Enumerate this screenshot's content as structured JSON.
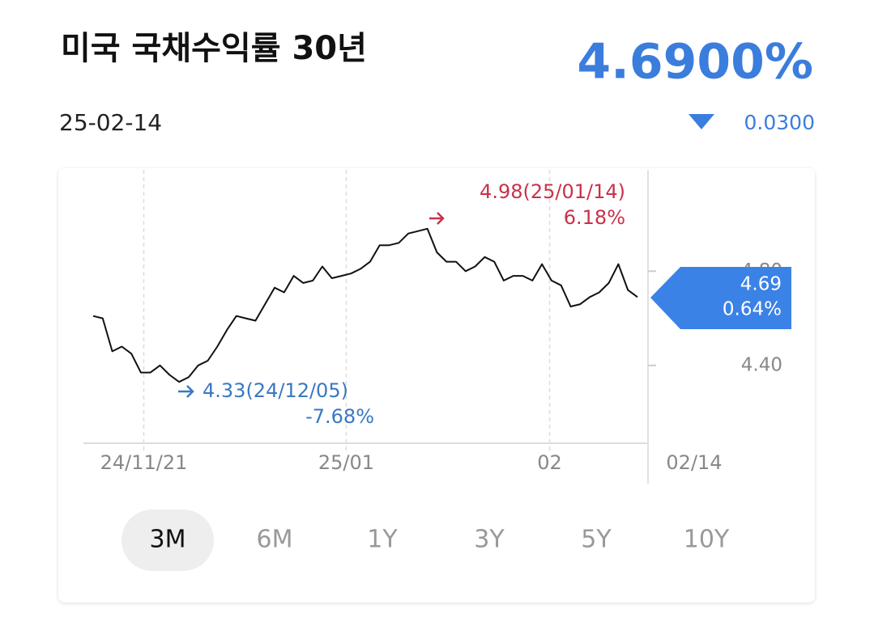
{
  "header": {
    "title": "미국 국채수익률 30년",
    "date": "25-02-14",
    "price": "4.6900%",
    "change": "0.0300"
  },
  "chart_data": {
    "type": "line",
    "color": "#111111",
    "values": [
      4.61,
      4.6,
      4.46,
      4.48,
      4.45,
      4.37,
      4.37,
      4.4,
      4.36,
      4.33,
      4.35,
      4.4,
      4.42,
      4.48,
      4.55,
      4.61,
      4.6,
      4.59,
      4.66,
      4.73,
      4.71,
      4.78,
      4.75,
      4.76,
      4.82,
      4.77,
      4.78,
      4.79,
      4.81,
      4.84,
      4.91,
      4.91,
      4.92,
      4.96,
      4.97,
      4.98,
      4.88,
      4.84,
      4.84,
      4.8,
      4.82,
      4.86,
      4.84,
      4.76,
      4.78,
      4.78,
      4.76,
      4.83,
      4.76,
      4.74,
      4.65,
      4.66,
      4.69,
      4.71,
      4.75,
      4.83,
      4.72,
      4.69
    ],
    "ylim": [
      4.07,
      5.23
    ],
    "yticks": [
      {
        "value": 4.4,
        "label": "4.40"
      },
      {
        "value": 4.8,
        "label": "4.80"
      }
    ],
    "xticks": [
      {
        "value": 5.3,
        "label": "24/11/21"
      },
      {
        "value": 26.5,
        "label": "25/01"
      },
      {
        "value": 47.8,
        "label": "02"
      }
    ],
    "current_date": "02/14",
    "annotations": {
      "max_label": "4.98(25/01/14)",
      "max_pct": "6.18%",
      "min_label": "4.33(24/12/05)",
      "min_pct": "-7.68%",
      "last_value": "4.69",
      "last_pct": "0.64%"
    }
  },
  "periods": [
    "3M",
    "6M",
    "1Y",
    "3Y",
    "5Y",
    "10Y"
  ]
}
